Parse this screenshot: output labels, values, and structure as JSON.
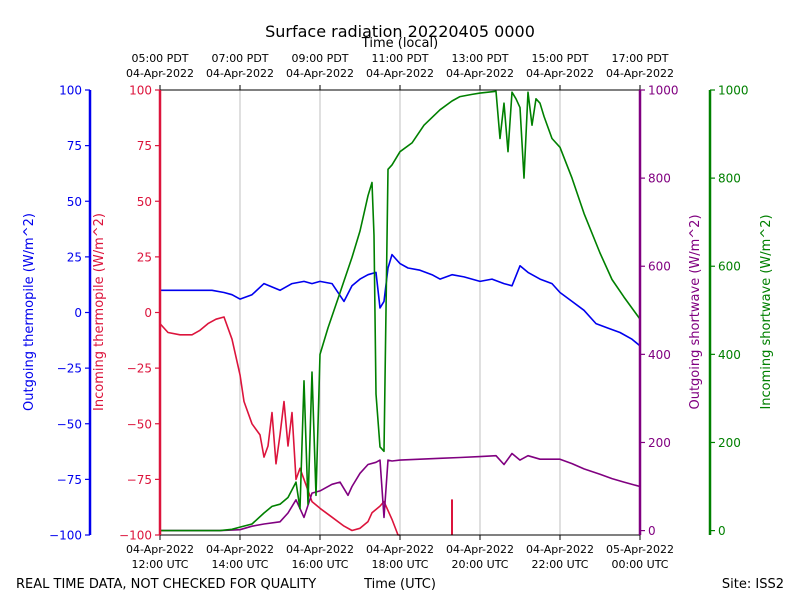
{
  "chart_data": {
    "type": "line",
    "title": "Surface radiation 20220405 0000",
    "top_axis_title": "Time (local)",
    "xlabel": "Time (UTC)",
    "footer_left": "REAL TIME DATA, NOT CHECKED FOR QUALITY",
    "footer_right": "Site: ISS2",
    "x_range_hours_utc": [
      12,
      24
    ],
    "grid": "vertical",
    "bottom_ticks": [
      {
        "h": 12,
        "date": "04-Apr-2022",
        "time": "12:00 UTC"
      },
      {
        "h": 14,
        "date": "04-Apr-2022",
        "time": "14:00 UTC"
      },
      {
        "h": 16,
        "date": "04-Apr-2022",
        "time": "16:00 UTC"
      },
      {
        "h": 18,
        "date": "04-Apr-2022",
        "time": "18:00 UTC"
      },
      {
        "h": 20,
        "date": "04-Apr-2022",
        "time": "20:00 UTC"
      },
      {
        "h": 22,
        "date": "04-Apr-2022",
        "time": "22:00 UTC"
      },
      {
        "h": 24,
        "date": "05-Apr-2022",
        "time": "00:00 UTC"
      }
    ],
    "top_ticks": [
      {
        "h": 12,
        "time": "05:00 PDT",
        "date": "04-Apr-2022"
      },
      {
        "h": 14,
        "time": "07:00 PDT",
        "date": "04-Apr-2022"
      },
      {
        "h": 16,
        "time": "09:00 PDT",
        "date": "04-Apr-2022"
      },
      {
        "h": 18,
        "time": "11:00 PDT",
        "date": "04-Apr-2022"
      },
      {
        "h": 20,
        "time": "13:00 PDT",
        "date": "04-Apr-2022"
      },
      {
        "h": 22,
        "time": "15:00 PDT",
        "date": "04-Apr-2022"
      },
      {
        "h": 24,
        "time": "17:00 PDT",
        "date": "04-Apr-2022"
      }
    ],
    "axes": [
      {
        "id": "outgoing_thermopile",
        "label": "Outgoing thermopile (W/m^2)",
        "color": "#0000ee",
        "range": [
          -100,
          100
        ],
        "ticks": [
          -100,
          -75,
          -50,
          -25,
          0,
          25,
          50,
          75,
          100
        ]
      },
      {
        "id": "incoming_thermopile",
        "label": "Incoming thermopile (W/m^2)",
        "color": "#dc143c",
        "range": [
          -100,
          100
        ],
        "ticks": [
          -100,
          -75,
          -50,
          -25,
          0,
          25,
          50,
          75,
          100
        ]
      },
      {
        "id": "outgoing_shortwave",
        "label": "Outgoing shortwave (W/m^2)",
        "color": "#800080",
        "range": [
          -10,
          1000
        ],
        "ticks": [
          0,
          200,
          400,
          600,
          800,
          1000
        ]
      },
      {
        "id": "incoming_shortwave",
        "label": "Incoming shortwave (W/m^2)",
        "color": "#008000",
        "range": [
          -10,
          1000
        ],
        "ticks": [
          0,
          200,
          400,
          600,
          800,
          1000
        ]
      }
    ],
    "series": [
      {
        "name": "Outgoing thermopile",
        "axis": "outgoing_thermopile",
        "color": "#0000ee",
        "x": [
          12.0,
          12.5,
          13.0,
          13.3,
          13.6,
          13.8,
          14.0,
          14.3,
          14.6,
          15.0,
          15.3,
          15.6,
          15.8,
          16.0,
          16.3,
          16.6,
          16.8,
          17.0,
          17.2,
          17.4,
          17.5,
          17.6,
          17.7,
          17.8,
          18.0,
          18.2,
          18.5,
          18.8,
          19.0,
          19.3,
          19.6,
          20.0,
          20.3,
          20.6,
          20.8,
          21.0,
          21.2,
          21.5,
          21.8,
          22.0,
          22.3,
          22.6,
          22.9,
          23.2,
          23.5,
          23.8,
          24.0
        ],
        "y": [
          10,
          10,
          10,
          10,
          9,
          8,
          6,
          8,
          13,
          10,
          13,
          14,
          13,
          14,
          13,
          5,
          12,
          15,
          17,
          18,
          2,
          5,
          20,
          26,
          22,
          20,
          19,
          17,
          15,
          17,
          16,
          14,
          15,
          13,
          12,
          21,
          18,
          15,
          13,
          9,
          5,
          1,
          -5,
          -7,
          -9,
          -12,
          -15
        ]
      },
      {
        "name": "Incoming thermopile",
        "axis": "incoming_thermopile",
        "color": "#dc143c",
        "x": [
          12.0,
          12.2,
          12.5,
          12.8,
          13.0,
          13.2,
          13.4,
          13.6,
          13.8,
          14.0,
          14.1,
          14.3,
          14.5,
          14.6,
          14.7,
          14.8,
          14.9,
          15.0,
          15.1,
          15.2,
          15.3,
          15.4,
          15.5,
          15.7,
          15.8,
          16.0,
          16.3,
          16.6,
          16.8,
          17.0,
          17.2,
          17.3,
          17.5,
          17.6,
          17.8,
          17.95,
          18.0
        ],
        "y": [
          -5,
          -9,
          -10,
          -10,
          -8,
          -5,
          -3,
          -2,
          -12,
          -28,
          -40,
          -50,
          -55,
          -65,
          -60,
          -45,
          -68,
          -55,
          -40,
          -60,
          -45,
          -75,
          -70,
          -80,
          -85,
          -88,
          -92,
          -96,
          -98,
          -97,
          -94,
          -90,
          -87,
          -85,
          -93,
          -100,
          -100
        ]
      },
      {
        "name": "Outgoing shortwave",
        "axis": "outgoing_shortwave",
        "color": "#800080",
        "x": [
          12.0,
          13.0,
          13.5,
          14.0,
          14.3,
          14.6,
          15.0,
          15.2,
          15.4,
          15.6,
          15.8,
          16.0,
          16.3,
          16.5,
          16.7,
          16.8,
          17.0,
          17.2,
          17.4,
          17.5,
          17.6,
          17.7,
          17.8,
          18.0,
          18.5,
          19.0,
          19.5,
          20.0,
          20.4,
          20.6,
          20.8,
          21.0,
          21.2,
          21.5,
          22.0,
          22.3,
          22.6,
          23.0,
          23.3,
          23.6,
          24.0
        ],
        "y": [
          0,
          0,
          0,
          2,
          10,
          15,
          20,
          40,
          70,
          30,
          85,
          90,
          105,
          110,
          80,
          100,
          130,
          150,
          155,
          160,
          30,
          160,
          158,
          160,
          162,
          164,
          166,
          168,
          170,
          150,
          175,
          160,
          170,
          162,
          162,
          152,
          140,
          128,
          118,
          110,
          100
        ]
      },
      {
        "name": "Incoming shortwave",
        "axis": "incoming_shortwave",
        "color": "#008000",
        "x": [
          12.0,
          13.0,
          13.5,
          13.8,
          14.0,
          14.3,
          14.6,
          14.8,
          15.0,
          15.2,
          15.4,
          15.5,
          15.6,
          15.7,
          15.8,
          15.9,
          16.0,
          16.2,
          16.5,
          16.8,
          17.0,
          17.1,
          17.2,
          17.3,
          17.35,
          17.4,
          17.5,
          17.6,
          17.7,
          17.8,
          18.0,
          18.3,
          18.6,
          19.0,
          19.3,
          19.5,
          19.8,
          20.0,
          20.2,
          20.4,
          20.5,
          20.6,
          20.7,
          20.8,
          20.9,
          21.0,
          21.1,
          21.2,
          21.3,
          21.4,
          21.5,
          21.6,
          21.8,
          22.0,
          22.3,
          22.6,
          23.0,
          23.3,
          23.6,
          24.0
        ],
        "y": [
          0,
          0,
          0,
          3,
          8,
          15,
          40,
          55,
          60,
          75,
          110,
          50,
          340,
          60,
          360,
          80,
          400,
          460,
          540,
          620,
          680,
          720,
          760,
          790,
          670,
          310,
          190,
          180,
          820,
          830,
          860,
          880,
          920,
          955,
          975,
          985,
          990,
          993,
          995,
          997,
          890,
          970,
          860,
          995,
          980,
          960,
          800,
          995,
          920,
          980,
          970,
          940,
          890,
          870,
          800,
          720,
          630,
          570,
          530,
          480
        ]
      }
    ]
  }
}
